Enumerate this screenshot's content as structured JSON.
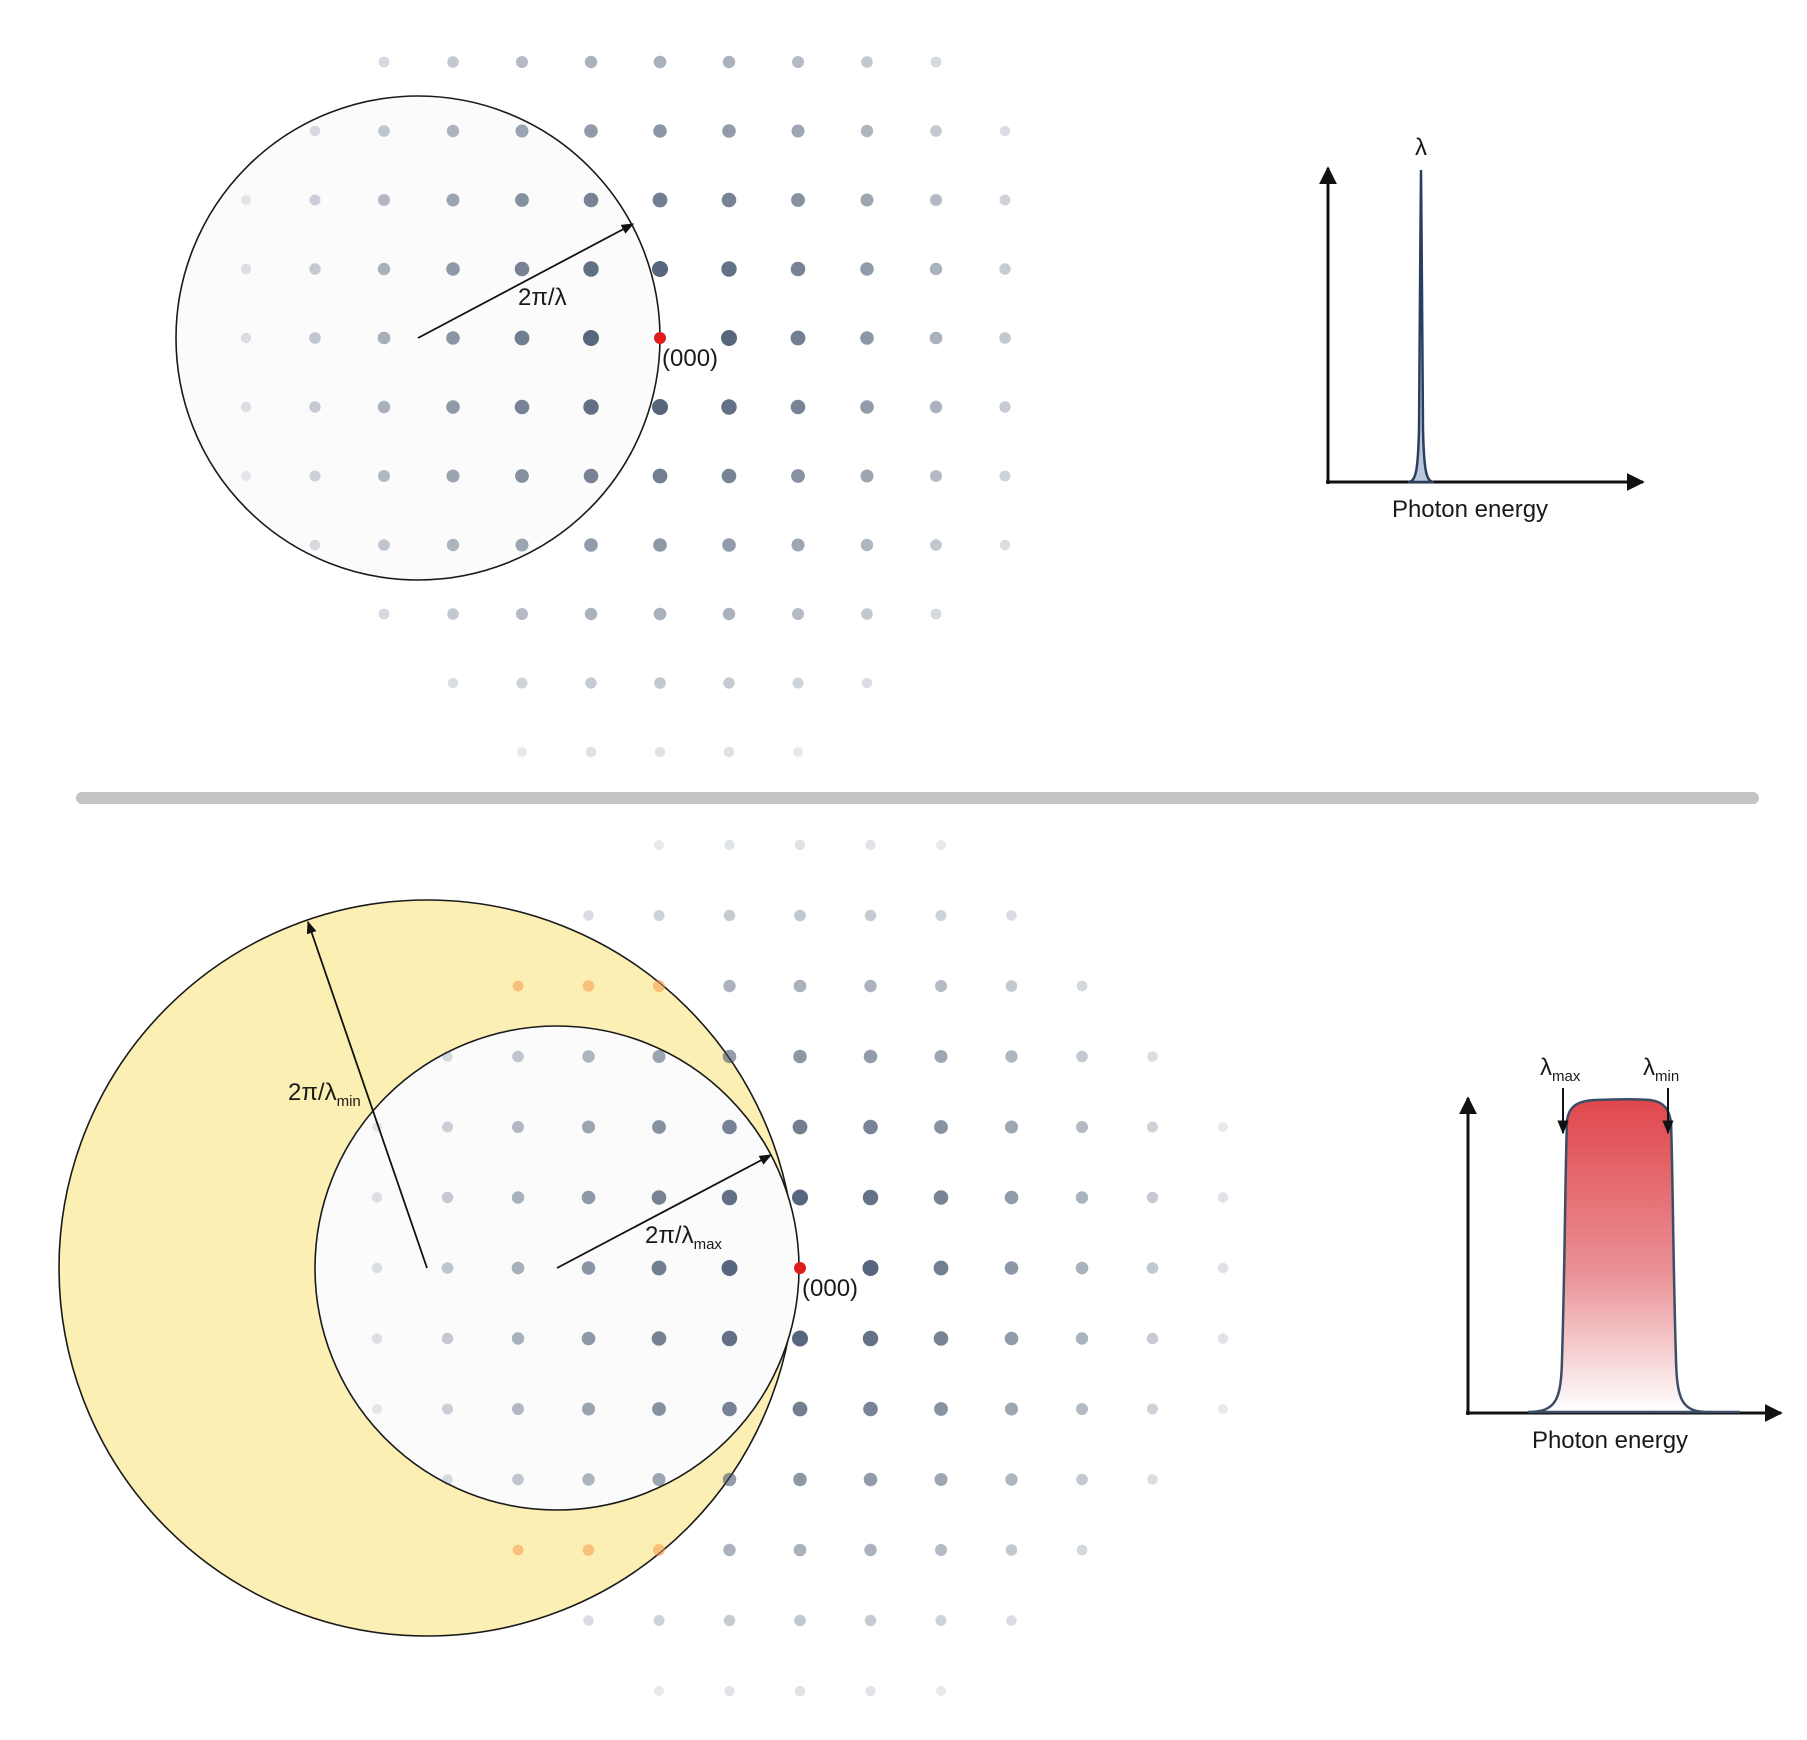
{
  "top_panel": {
    "radius_label": "2π/λ",
    "origin_label": "(000)",
    "spectrum": {
      "peak_label": "λ",
      "x_axis_label": "Photon energy"
    }
  },
  "bottom_panel": {
    "radius_min_label": "2π/λ",
    "radius_min_sub": "min",
    "radius_max_label": "2π/λ",
    "radius_max_sub": "max",
    "origin_label": "(000)",
    "spectrum": {
      "left_arrow_label": "λ",
      "left_arrow_sub": "max",
      "right_arrow_label": "λ",
      "right_arrow_sub": "min",
      "x_axis_label": "Photon energy"
    }
  },
  "colors": {
    "lattice_dot": "#3b4d66",
    "origin_point": "#e01b1b",
    "reflecting_dot": "#f29a4a",
    "shell_fill": "#fcefb4",
    "spectrum_line": "#2a3f5f",
    "band_top": "#e0474c",
    "divider": "#c4c4c4"
  }
}
